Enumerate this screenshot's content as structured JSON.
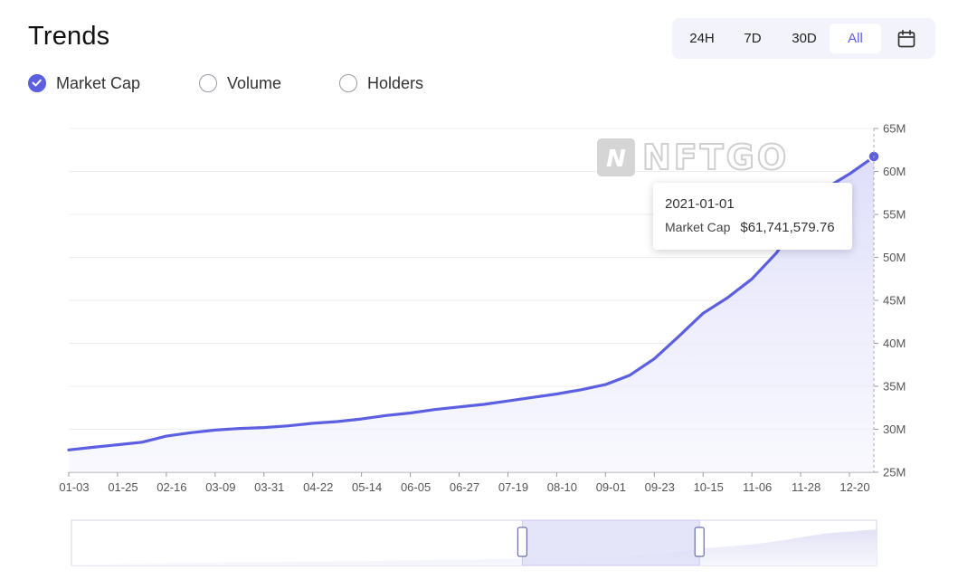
{
  "page": {
    "title": "Trends"
  },
  "range_selector": {
    "options": [
      "24H",
      "7D",
      "30D",
      "All"
    ],
    "selected": "All",
    "calendar_icon": "calendar-icon"
  },
  "metrics": {
    "options": [
      {
        "label": "Market Cap",
        "checked": true
      },
      {
        "label": "Volume",
        "checked": false
      },
      {
        "label": "Holders",
        "checked": false
      }
    ]
  },
  "watermark": {
    "text": "NFTGO"
  },
  "tooltip": {
    "date": "2021-01-01",
    "label": "Market Cap",
    "value": "$61,741,579.76"
  },
  "colors": {
    "accent": "#5b5fe0",
    "area_fill": "#e6e7fb",
    "grid": "#ececf2",
    "navigator_window": "#dcdcf8"
  },
  "chart_data": {
    "type": "area",
    "series": [
      {
        "name": "Market Cap",
        "x": [
          "01-03",
          "01-14",
          "01-25",
          "02-05",
          "02-16",
          "02-27",
          "03-09",
          "03-20",
          "03-31",
          "04-11",
          "04-22",
          "05-03",
          "05-14",
          "05-25",
          "06-05",
          "06-16",
          "06-27",
          "07-08",
          "07-19",
          "07-30",
          "08-10",
          "08-21",
          "09-01",
          "09-12",
          "09-23",
          "10-04",
          "10-15",
          "10-26",
          "11-06",
          "11-17",
          "11-28",
          "12-09",
          "12-20",
          "12-31"
        ],
        "values": [
          27.6,
          27.9,
          28.2,
          28.5,
          29.2,
          29.6,
          29.9,
          30.1,
          30.2,
          30.4,
          30.7,
          30.9,
          31.2,
          31.6,
          31.9,
          32.3,
          32.6,
          32.9,
          33.3,
          33.7,
          34.1,
          34.6,
          35.2,
          36.3,
          38.2,
          40.8,
          43.5,
          45.3,
          47.5,
          50.5,
          54.5,
          58.0,
          59.7,
          61.7
        ]
      }
    ],
    "x_tick_labels": [
      "01-03",
      "01-25",
      "02-16",
      "03-09",
      "03-31",
      "04-22",
      "05-14",
      "06-05",
      "06-27",
      "07-19",
      "08-10",
      "09-01",
      "09-23",
      "10-15",
      "11-06",
      "11-28",
      "12-20"
    ],
    "y_ticks": [
      25,
      30,
      35,
      40,
      45,
      50,
      55,
      60,
      65
    ],
    "y_tick_labels": [
      "25M",
      "30M",
      "35M",
      "40M",
      "45M",
      "50M",
      "55M",
      "60M",
      "65M"
    ],
    "ylim": [
      25,
      65
    ],
    "y_unit": "M",
    "y_axis_position": "right",
    "grid": true,
    "highlighted_point": {
      "x": "12-31",
      "value": 61.74
    },
    "navigator": {
      "selected_range": [
        0.56,
        0.78
      ]
    }
  }
}
